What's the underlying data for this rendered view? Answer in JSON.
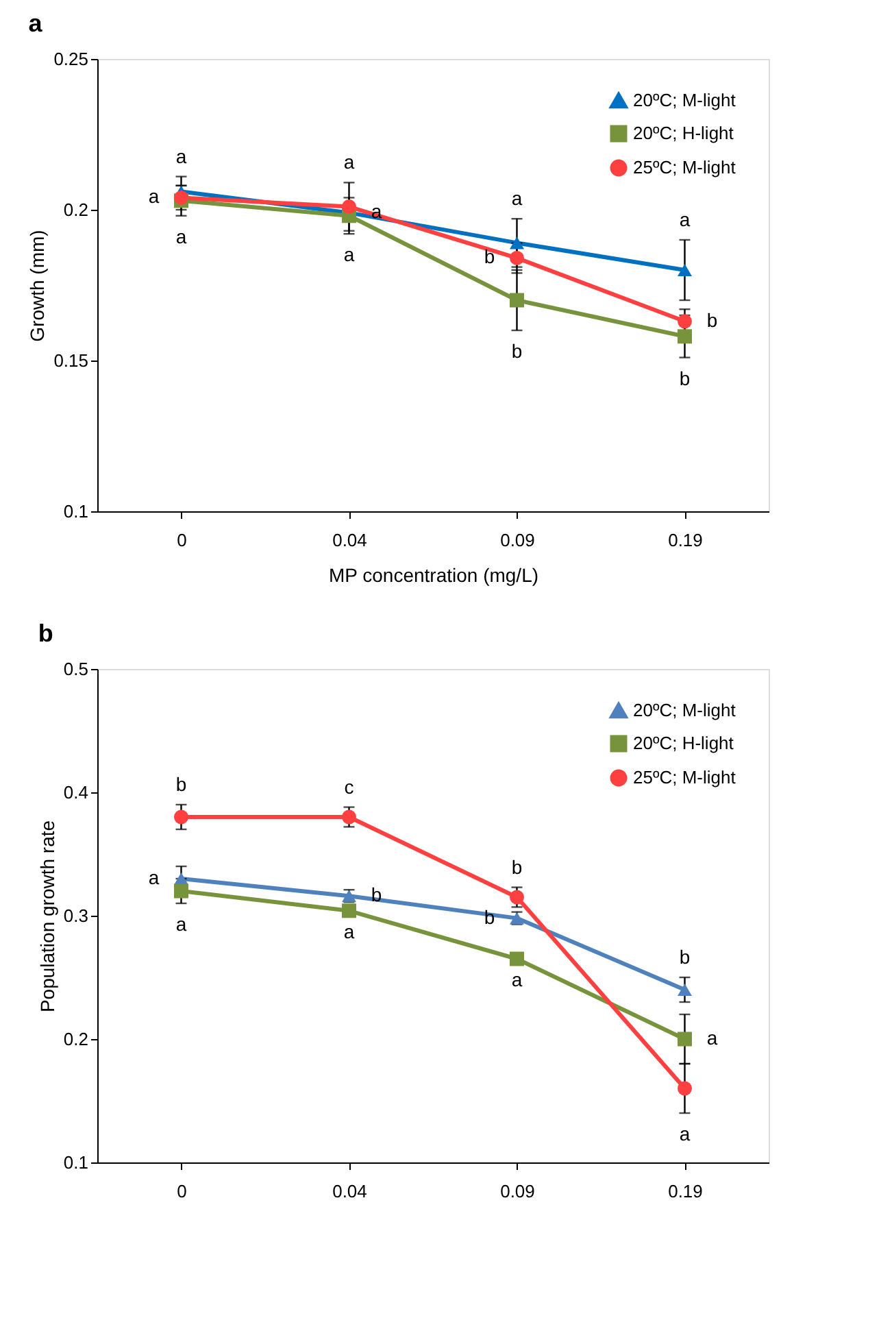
{
  "chart_data": [
    {
      "type": "line",
      "title": "a",
      "xlabel": "MP concentration (mg/L)",
      "ylabel": "Growth (mm)",
      "categories": [
        "0",
        "0.04",
        "0.09",
        "0.19"
      ],
      "ylim": [
        0.1,
        0.25
      ],
      "yticks": [
        0.1,
        0.15,
        0.2,
        0.25
      ],
      "grid": false,
      "legend": "top right",
      "line_style": "solid",
      "series": [
        {
          "name": "20ºC; M-light",
          "color": "#0070c0",
          "marker": "triangle",
          "values": [
            0.206,
            0.199,
            0.189,
            0.18
          ],
          "errors": [
            0.005,
            0.003,
            0.008,
            0.01
          ]
        },
        {
          "name": "20ºC; H-light",
          "color": "#77933c",
          "marker": "square",
          "values": [
            0.203,
            0.198,
            0.17,
            0.158
          ],
          "errors": [
            0.005,
            0.006,
            0.01,
            0.007
          ]
        },
        {
          "name": "25ºC; M-light",
          "color": "#ff4040",
          "marker": "circle",
          "values": [
            0.204,
            0.201,
            0.184,
            0.163
          ],
          "errors": [
            0.004,
            0.008,
            0.005,
            0.004
          ]
        }
      ],
      "annotations": [
        {
          "text": "a",
          "x": "0",
          "y": 0.206
        },
        {
          "text": "a",
          "x": "0",
          "y": 0.204
        },
        {
          "text": "a",
          "x": "0",
          "y": 0.203
        },
        {
          "text": "a",
          "x": "0.04",
          "y": 0.201
        },
        {
          "text": "a",
          "x": "0.04",
          "y": 0.199
        },
        {
          "text": "a",
          "x": "0.04",
          "y": 0.198
        },
        {
          "text": "a",
          "x": "0.09",
          "y": 0.189
        },
        {
          "text": "b",
          "x": "0.09",
          "y": 0.184
        },
        {
          "text": "b",
          "x": "0.09",
          "y": 0.17
        },
        {
          "text": "a",
          "x": "0.19",
          "y": 0.18
        },
        {
          "text": "b",
          "x": "0.19",
          "y": 0.163
        },
        {
          "text": "b",
          "x": "0.19",
          "y": 0.158
        }
      ]
    },
    {
      "type": "line",
      "title": "b",
      "ylabel": "Population growth rate",
      "categories": [
        "0",
        "0.04",
        "0.09",
        "0.19"
      ],
      "ylim": [
        0.1,
        0.5
      ],
      "yticks": [
        0.1,
        0.2,
        0.3,
        0.4,
        0.5
      ],
      "grid": false,
      "legend": "top right",
      "line_style": "solid",
      "series": [
        {
          "name": "20ºC; M-light",
          "color": "#4f81bd",
          "marker": "triangle",
          "values": [
            0.33,
            0.316,
            0.298,
            0.24
          ],
          "errors": [
            0.01,
            0.005,
            0.005,
            0.01
          ]
        },
        {
          "name": "20ºC; H-light",
          "color": "#77933c",
          "marker": "square",
          "values": [
            0.32,
            0.304,
            0.265,
            0.2
          ],
          "errors": [
            0.01,
            null,
            null,
            0.02
          ]
        },
        {
          "name": "25ºC; M-light",
          "color": "#ff4040",
          "marker": "circle",
          "values": [
            0.38,
            0.38,
            0.315,
            0.16
          ],
          "errors": [
            0.01,
            0.008,
            0.008,
            0.02
          ]
        }
      ],
      "annotations": [
        {
          "text": "b",
          "x": "0",
          "y": 0.38
        },
        {
          "text": "a",
          "x": "0",
          "y": 0.33
        },
        {
          "text": "a",
          "x": "0",
          "y": 0.32
        },
        {
          "text": "c",
          "x": "0.04",
          "y": 0.38
        },
        {
          "text": "b",
          "x": "0.04",
          "y": 0.316
        },
        {
          "text": "a",
          "x": "0.04",
          "y": 0.304
        },
        {
          "text": "b",
          "x": "0.09",
          "y": 0.315
        },
        {
          "text": "b",
          "x": "0.09",
          "y": 0.298
        },
        {
          "text": "a",
          "x": "0.09",
          "y": 0.265
        },
        {
          "text": "b",
          "x": "0.19",
          "y": 0.24
        },
        {
          "text": "a",
          "x": "0.19",
          "y": 0.2
        },
        {
          "text": "a",
          "x": "0.19",
          "y": 0.16
        }
      ]
    }
  ]
}
